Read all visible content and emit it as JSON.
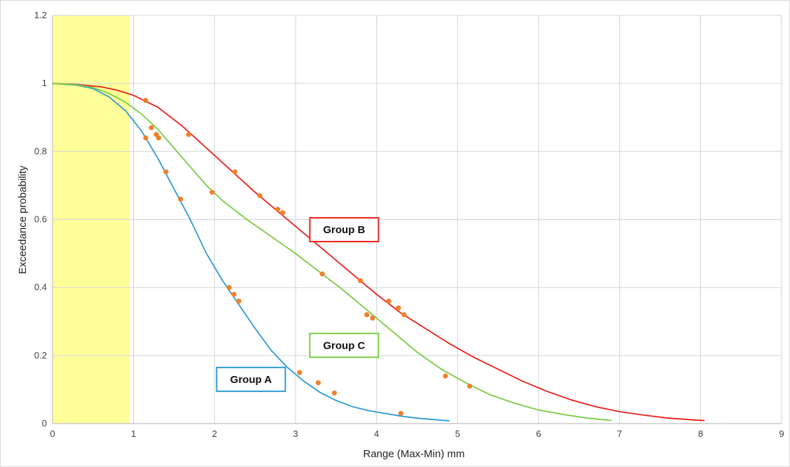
{
  "chart_data": {
    "type": "line",
    "xlabel": "Range (Max-Min) mm",
    "ylabel": "Exceedance probability",
    "xlim": [
      0,
      9
    ],
    "ylim": [
      0,
      1.2
    ],
    "x_ticks": [
      0,
      1,
      2,
      3,
      4,
      5,
      6,
      7,
      8,
      9
    ],
    "y_ticks": [
      0,
      0.2,
      0.4,
      0.6,
      0.8,
      1,
      1.2
    ],
    "y_tick_labels": [
      "0",
      "0.2",
      "0.4",
      "0.6",
      "0.8",
      "1",
      "1.2"
    ],
    "grid": true,
    "shaded_region": {
      "x_from": 0,
      "x_to": 0.95,
      "color": "#ffff99"
    },
    "series": [
      {
        "name": "Group A",
        "color": "#2e9ad6",
        "curve": [
          [
            0,
            1
          ],
          [
            0.3,
            0.995
          ],
          [
            0.5,
            0.985
          ],
          [
            0.7,
            0.96
          ],
          [
            0.9,
            0.92
          ],
          [
            1.1,
            0.86
          ],
          [
            1.3,
            0.78
          ],
          [
            1.5,
            0.69
          ],
          [
            1.7,
            0.6
          ],
          [
            1.9,
            0.5
          ],
          [
            2.1,
            0.42
          ],
          [
            2.3,
            0.35
          ],
          [
            2.5,
            0.28
          ],
          [
            2.7,
            0.215
          ],
          [
            2.9,
            0.165
          ],
          [
            3.1,
            0.125
          ],
          [
            3.3,
            0.092
          ],
          [
            3.5,
            0.068
          ],
          [
            3.7,
            0.05
          ],
          [
            3.9,
            0.038
          ],
          [
            4.1,
            0.03
          ],
          [
            4.3,
            0.022
          ],
          [
            4.5,
            0.016
          ],
          [
            4.7,
            0.012
          ],
          [
            4.9,
            0.008
          ]
        ],
        "points": [
          [
            1.15,
            0.84
          ],
          [
            1.4,
            0.74
          ],
          [
            1.58,
            0.66
          ],
          [
            2.18,
            0.4
          ],
          [
            2.24,
            0.38
          ],
          [
            2.3,
            0.36
          ],
          [
            3.05,
            0.15
          ],
          [
            3.28,
            0.12
          ],
          [
            3.48,
            0.09
          ],
          [
            4.3,
            0.03
          ]
        ]
      },
      {
        "name": "Group B",
        "color": "#e8201a",
        "curve": [
          [
            0,
            1
          ],
          [
            0.3,
            0.997
          ],
          [
            0.6,
            0.99
          ],
          [
            0.8,
            0.98
          ],
          [
            1,
            0.965
          ],
          [
            1.3,
            0.93
          ],
          [
            1.6,
            0.875
          ],
          [
            1.9,
            0.81
          ],
          [
            2.2,
            0.745
          ],
          [
            2.5,
            0.68
          ],
          [
            2.8,
            0.62
          ],
          [
            3.1,
            0.56
          ],
          [
            3.4,
            0.5
          ],
          [
            3.7,
            0.44
          ],
          [
            4,
            0.38
          ],
          [
            4.3,
            0.325
          ],
          [
            4.6,
            0.28
          ],
          [
            4.9,
            0.235
          ],
          [
            5.2,
            0.195
          ],
          [
            5.5,
            0.16
          ],
          [
            5.8,
            0.125
          ],
          [
            6.1,
            0.095
          ],
          [
            6.4,
            0.07
          ],
          [
            6.7,
            0.05
          ],
          [
            7,
            0.035
          ],
          [
            7.3,
            0.025
          ],
          [
            7.6,
            0.016
          ],
          [
            7.9,
            0.011
          ],
          [
            8.05,
            0.009
          ]
        ],
        "points": [
          [
            1.15,
            0.95
          ],
          [
            1.68,
            0.85
          ],
          [
            2.25,
            0.74
          ],
          [
            2.56,
            0.67
          ],
          [
            2.78,
            0.63
          ],
          [
            2.84,
            0.62
          ],
          [
            3.8,
            0.42
          ],
          [
            4.15,
            0.36
          ],
          [
            4.27,
            0.34
          ],
          [
            4.34,
            0.32
          ]
        ]
      },
      {
        "name": "Group C",
        "color": "#77cc44",
        "curve": [
          [
            0,
            1
          ],
          [
            0.3,
            0.996
          ],
          [
            0.5,
            0.988
          ],
          [
            0.7,
            0.97
          ],
          [
            0.9,
            0.945
          ],
          [
            1.1,
            0.91
          ],
          [
            1.3,
            0.865
          ],
          [
            1.5,
            0.81
          ],
          [
            1.7,
            0.755
          ],
          [
            1.9,
            0.7
          ],
          [
            2.1,
            0.655
          ],
          [
            2.4,
            0.6
          ],
          [
            2.7,
            0.55
          ],
          [
            3,
            0.5
          ],
          [
            3.3,
            0.445
          ],
          [
            3.6,
            0.39
          ],
          [
            3.9,
            0.33
          ],
          [
            4.2,
            0.27
          ],
          [
            4.5,
            0.21
          ],
          [
            4.8,
            0.16
          ],
          [
            5.1,
            0.12
          ],
          [
            5.4,
            0.085
          ],
          [
            5.7,
            0.06
          ],
          [
            6,
            0.04
          ],
          [
            6.3,
            0.027
          ],
          [
            6.6,
            0.016
          ],
          [
            6.9,
            0.009
          ]
        ],
        "points": [
          [
            1.22,
            0.87
          ],
          [
            1.28,
            0.85
          ],
          [
            1.31,
            0.84
          ],
          [
            1.97,
            0.68
          ],
          [
            3.33,
            0.44
          ],
          [
            3.88,
            0.32
          ],
          [
            3.95,
            0.31
          ],
          [
            4.85,
            0.14
          ],
          [
            5.15,
            0.11
          ]
        ]
      }
    ],
    "point_color": "#f07f2a",
    "annotations": [
      {
        "text": "Group A",
        "color": "#2e9ad6",
        "x": 2.45,
        "y": 0.13
      },
      {
        "text": "Group B",
        "color": "#e8201a",
        "x": 3.6,
        "y": 0.57
      },
      {
        "text": "Group C",
        "color": "#77cc44",
        "x": 3.6,
        "y": 0.23
      }
    ]
  }
}
